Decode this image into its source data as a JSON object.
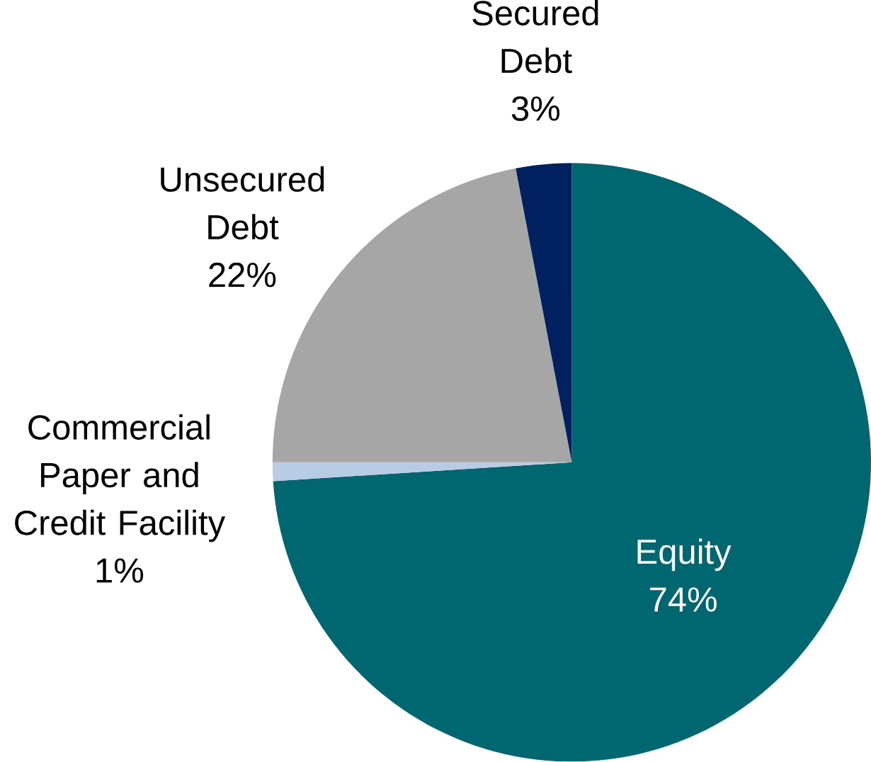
{
  "chart_data": {
    "type": "pie",
    "categories": [
      "Equity",
      "Commercial Paper and Credit Facility",
      "Unsecured Debt",
      "Secured Debt"
    ],
    "values": [
      74,
      1,
      22,
      3
    ],
    "value_labels": [
      "74%",
      "1%",
      "22%",
      "3%"
    ],
    "colors": [
      "#006770",
      "#b8cce4",
      "#a6a6a6",
      "#002060"
    ]
  }
}
